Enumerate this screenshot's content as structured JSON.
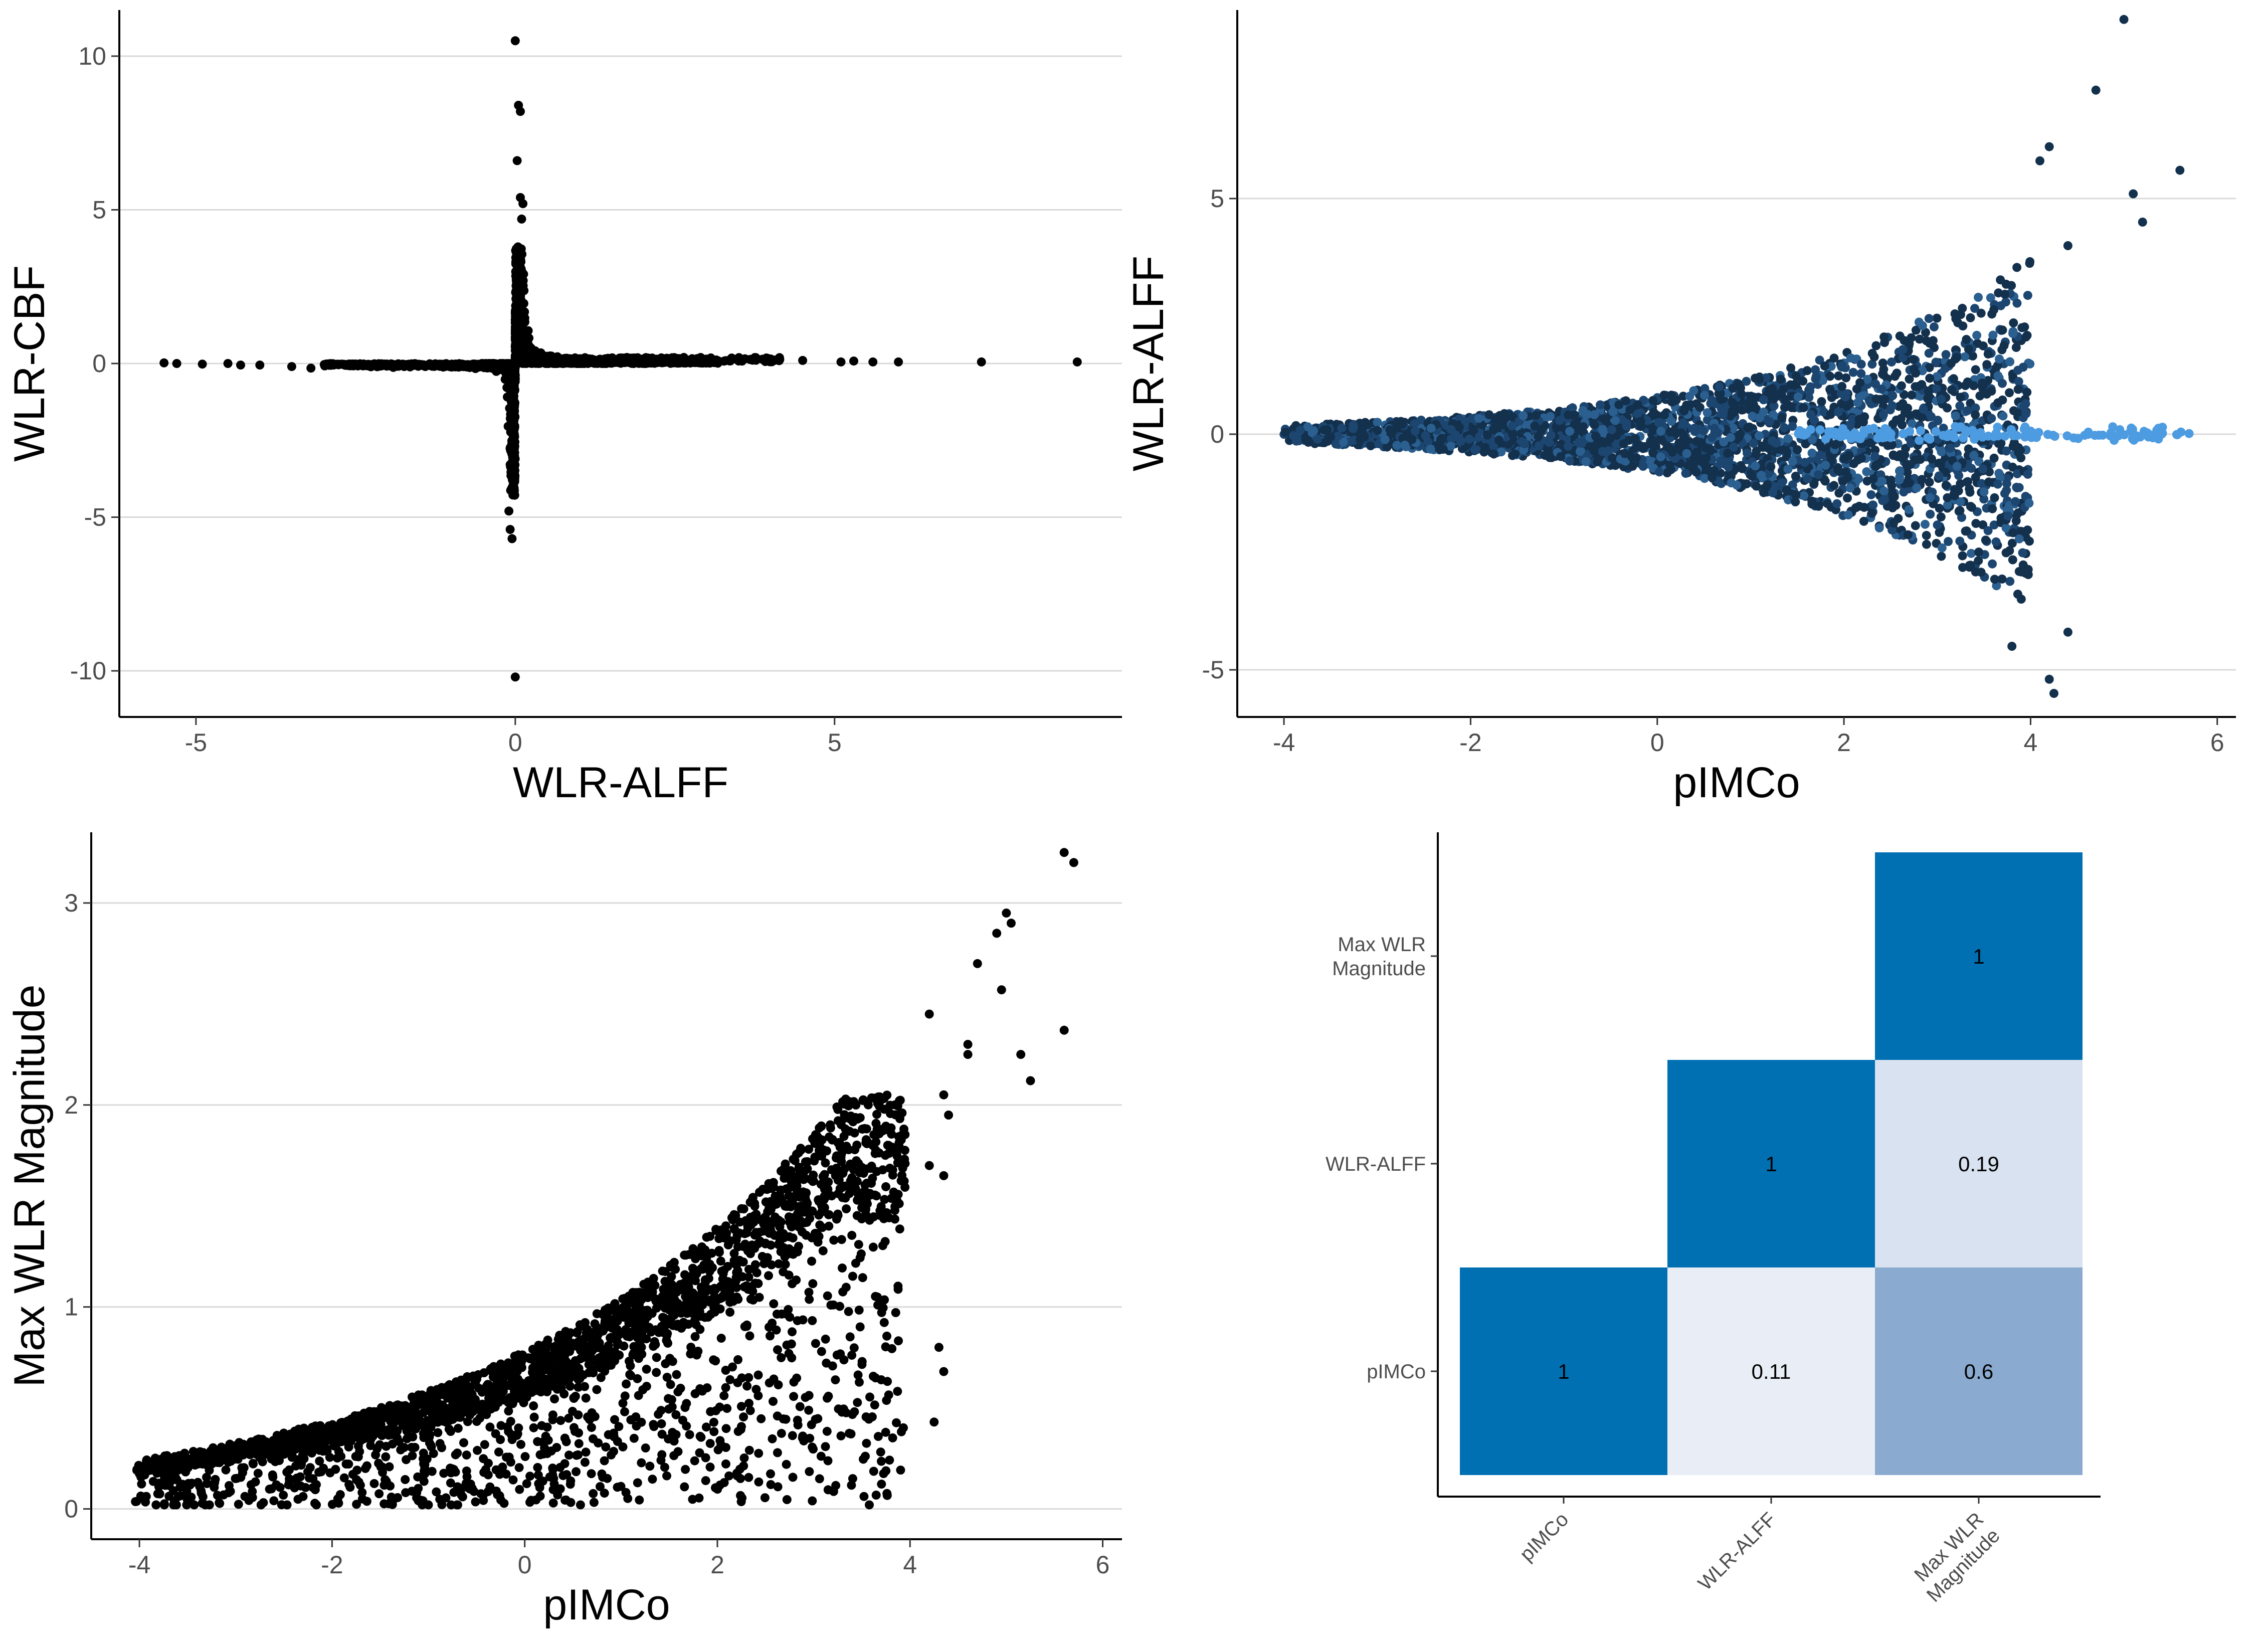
{
  "chart_data": [
    {
      "type": "scatter",
      "xlabel": "WLR-ALFF",
      "ylabel": "WLR-CBF",
      "xlim": [
        -6.2,
        9.5
      ],
      "ylim": [
        -11.5,
        11.5
      ],
      "xticks": [
        -5,
        0,
        5
      ],
      "yticks": [
        -10,
        -5,
        0,
        5,
        10
      ],
      "grid": "horizontal-major",
      "point_color": "#000000",
      "pattern": "cross",
      "outliers": [
        [
          0,
          10.5
        ],
        [
          0.05,
          8.4
        ],
        [
          0.08,
          8.2
        ],
        [
          0.03,
          6.6
        ],
        [
          0.08,
          5.4
        ],
        [
          0.12,
          5.2
        ],
        [
          0.1,
          4.7
        ],
        [
          0,
          -10.2
        ],
        [
          -0.05,
          -5.7
        ],
        [
          -0.08,
          -5.4
        ],
        [
          -0.1,
          -4.8
        ],
        [
          -5.5,
          0.02
        ],
        [
          -5.3,
          0.0
        ],
        [
          -4.9,
          -0.02
        ],
        [
          -4.5,
          0.0
        ],
        [
          -4.3,
          -0.05
        ],
        [
          -4.0,
          -0.05
        ],
        [
          -3.5,
          -0.1
        ],
        [
          -3.2,
          -0.15
        ],
        [
          4.5,
          0.1
        ],
        [
          5.1,
          0.05
        ],
        [
          5.3,
          0.08
        ],
        [
          5.6,
          0.05
        ],
        [
          6.0,
          0.05
        ],
        [
          7.3,
          0.05
        ],
        [
          8.8,
          0.05
        ]
      ]
    },
    {
      "type": "scatter",
      "xlabel": "pIMCo",
      "ylabel": "WLR-ALFF",
      "xlim": [
        -4.5,
        6.2
      ],
      "ylim": [
        -6.0,
        9.0
      ],
      "xticks": [
        -4,
        -2,
        0,
        2,
        4,
        6
      ],
      "yticks": [
        -5,
        0,
        5
      ],
      "grid": "horizontal-major",
      "point_color_dark": "#13304d",
      "point_color_mid": "#2a5f8f",
      "point_color_light": "#4d9be0",
      "pattern": "funnel",
      "outliers": [
        [
          5.0,
          8.8
        ],
        [
          4.7,
          7.3
        ],
        [
          4.2,
          6.1
        ],
        [
          4.1,
          5.8
        ],
        [
          5.6,
          5.6
        ],
        [
          5.1,
          5.1
        ],
        [
          5.2,
          4.5
        ],
        [
          4.4,
          4.0
        ],
        [
          4.4,
          -4.2
        ],
        [
          4.2,
          -5.2
        ],
        [
          4.25,
          -5.5
        ],
        [
          3.8,
          -4.5
        ],
        [
          3.9,
          -3.5
        ]
      ]
    },
    {
      "type": "scatter",
      "xlabel": "pIMCo",
      "ylabel": "Max WLR Magnitude",
      "xlim": [
        -4.5,
        6.2
      ],
      "ylim": [
        -0.15,
        3.35
      ],
      "xticks": [
        -4,
        -2,
        0,
        2,
        4,
        6
      ],
      "yticks": [
        0,
        1,
        2,
        3
      ],
      "grid": "horizontal-major",
      "point_color": "#000000",
      "pattern": "upper-envelope",
      "outliers": [
        [
          5.6,
          3.25
        ],
        [
          5.7,
          3.2
        ],
        [
          5.0,
          2.95
        ],
        [
          5.05,
          2.9
        ],
        [
          4.9,
          2.85
        ],
        [
          4.7,
          2.7
        ],
        [
          4.95,
          2.57
        ],
        [
          4.2,
          2.45
        ],
        [
          4.6,
          2.3
        ],
        [
          4.6,
          2.25
        ],
        [
          5.15,
          2.25
        ],
        [
          5.25,
          2.12
        ],
        [
          5.6,
          2.37
        ],
        [
          4.35,
          2.05
        ],
        [
          4.4,
          1.95
        ],
        [
          4.2,
          1.7
        ],
        [
          4.35,
          1.65
        ],
        [
          4.3,
          0.8
        ],
        [
          4.35,
          0.68
        ],
        [
          4.25,
          0.43
        ]
      ]
    },
    {
      "type": "heatmap",
      "x_categories": [
        "pIMCo",
        "WLR-ALFF",
        "Max WLR\nMagnitude"
      ],
      "y_categories": [
        "pIMCo",
        "WLR-ALFF",
        "Max WLR\nMagnitude"
      ],
      "cells": [
        {
          "x": 0,
          "y": 0,
          "value": 1,
          "label": "1"
        },
        {
          "x": 1,
          "y": 0,
          "value": 0.11,
          "label": "0.11"
        },
        {
          "x": 2,
          "y": 0,
          "value": 0.6,
          "label": "0.6"
        },
        {
          "x": 1,
          "y": 1,
          "value": 1,
          "label": "1"
        },
        {
          "x": 2,
          "y": 1,
          "value": 0.19,
          "label": "0.19"
        },
        {
          "x": 2,
          "y": 2,
          "value": 1,
          "label": "1"
        }
      ],
      "colors": {
        "low": "#e9eef6",
        "high": "#0070b2",
        "mid": "#8aaad0"
      }
    }
  ]
}
